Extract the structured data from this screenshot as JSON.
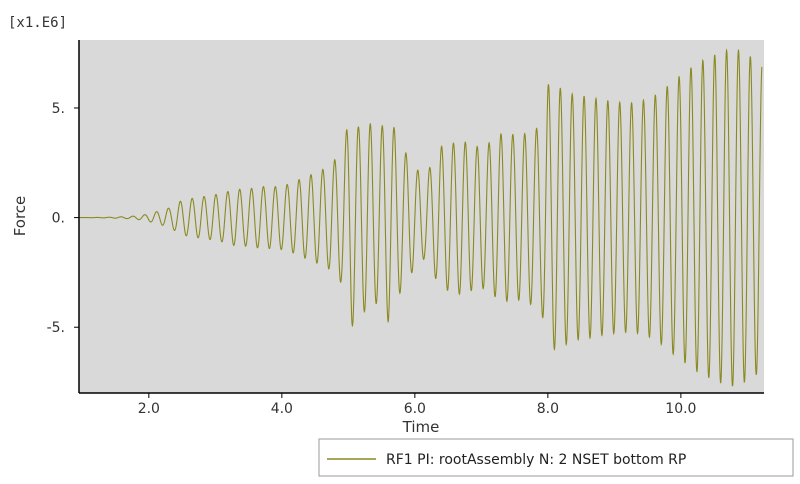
{
  "chart_data": {
    "type": "line",
    "title": "",
    "xlabel": "Time",
    "ylabel": "Force",
    "y_multiplier_label": "[x1.E6]",
    "xlim": [
      0.95,
      11.25
    ],
    "ylim": [
      -8.0,
      8.1
    ],
    "x_ticks": [
      2.0,
      4.0,
      6.0,
      8.0,
      10.0
    ],
    "x_tick_labels": [
      "2.0",
      "4.0",
      "6.0",
      "8.0",
      "10.0"
    ],
    "y_ticks": [
      5.0,
      0.0,
      -5.0
    ],
    "y_tick_labels": [
      "5.",
      "0.",
      "-5."
    ],
    "grid": false,
    "plot_background": "#d9d9d9",
    "line_color": "#8a8a22",
    "legend_position": "bottom-right",
    "series": [
      {
        "name": "RF1 PI: rootAssembly N: 2 NSET bottom RP",
        "x": [
          1.0,
          1.4,
          1.7,
          1.9,
          2.1,
          2.3,
          2.5,
          2.7,
          2.9,
          3.1,
          3.3,
          3.5,
          3.7,
          3.9,
          4.1,
          4.3,
          4.5,
          4.7,
          4.9,
          5.05,
          5.15,
          5.3,
          5.45,
          5.6,
          5.8,
          6.0,
          6.15,
          6.4,
          6.7,
          7.0,
          7.3,
          7.6,
          7.9,
          8.0,
          8.4,
          8.8,
          9.0,
          9.3,
          9.6,
          9.9,
          10.2,
          10.5,
          10.8,
          11.0,
          11.2
        ],
        "amplitude": [
          0.0,
          0.02,
          0.06,
          0.12,
          0.28,
          0.45,
          0.8,
          0.9,
          1.0,
          1.15,
          1.4,
          1.5,
          1.7,
          1.75,
          1.9,
          2.2,
          2.4,
          2.6,
          3.2,
          5.2,
          4.2,
          4.4,
          3.8,
          4.8,
          3.4,
          2.5,
          2.1,
          3.9,
          4.4,
          3.9,
          4.4,
          4.0,
          4.2,
          6.1,
          5.7,
          6.0,
          6.2,
          6.5,
          6.9,
          7.4,
          7.6,
          7.6,
          7.7,
          7.5,
          7.3
        ],
        "oscillation_freq": 5.6
      }
    ]
  }
}
